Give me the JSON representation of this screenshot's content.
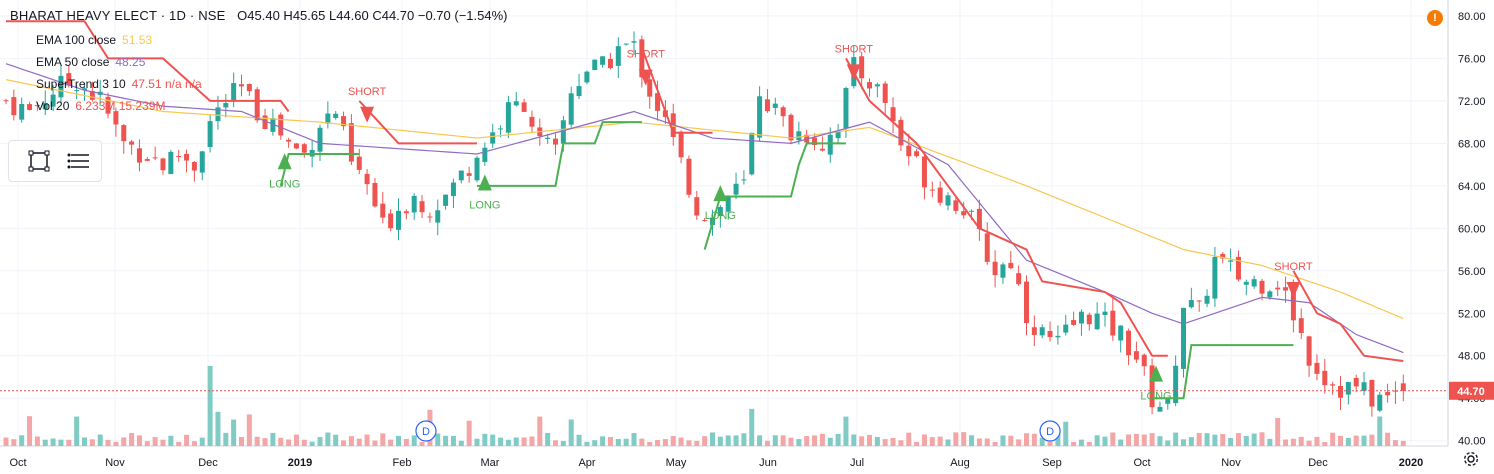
{
  "header": {
    "symbol": "BHARAT HEAVY ELECT · 1D · NSE",
    "ohlc": "O45.40 H45.65 L44.60 C44.70 −0.70 (−1.54%)",
    "indicators": [
      {
        "label": "EMA 100 close",
        "value": "51.53",
        "color": "#f9c74f"
      },
      {
        "label": "EMA 50 close",
        "value": "48.25",
        "color": "#8e6bc4"
      },
      {
        "label": "SuperTrend 3 10",
        "value": "47.51  n/a  n/a",
        "color": "#ef5350"
      },
      {
        "label": "Vol 20",
        "value": "6.233M  15.239M",
        "color": "#ef5350"
      }
    ],
    "alert_icon": "!"
  },
  "toolbox": {
    "icons": [
      "square-select-icon",
      "lines-list-icon"
    ]
  },
  "price_label": "44.70",
  "chart_data": {
    "type": "candlestick",
    "y_range": [
      39.5,
      81.5
    ],
    "y_ticks": [
      "40.00",
      "44.00",
      "48.00",
      "52.00",
      "56.00",
      "60.00",
      "64.00",
      "68.00",
      "72.00",
      "76.00",
      "80.00"
    ],
    "x_ticks": [
      "Oct",
      "Nov",
      "Dec",
      "2019",
      "Feb",
      "Mar",
      "Apr",
      "May",
      "Jun",
      "Jul",
      "Aug",
      "Sep",
      "Oct",
      "Nov",
      "Dec",
      "2020"
    ],
    "last_close": 44.7,
    "colors": {
      "up": "#26a69a",
      "down": "#ef5350",
      "ema100": "#f9c74f",
      "ema50": "#8e6bc4",
      "st_up": "#4caf50",
      "st_down": "#ef5350",
      "vol_up": "#80cbc4",
      "vol_down": "#f4a6a6"
    },
    "price_path": [
      [
        0,
        72
      ],
      [
        3,
        71
      ],
      [
        6,
        73
      ],
      [
        9,
        74
      ],
      [
        12,
        72
      ],
      [
        15,
        68
      ],
      [
        18,
        67
      ],
      [
        20,
        66
      ],
      [
        22,
        67
      ],
      [
        24,
        66
      ],
      [
        26,
        70
      ],
      [
        28,
        72
      ],
      [
        30,
        73
      ],
      [
        32,
        71
      ],
      [
        34,
        70
      ],
      [
        36,
        68
      ],
      [
        38,
        67
      ],
      [
        40,
        70
      ],
      [
        42,
        71
      ],
      [
        44,
        66
      ],
      [
        46,
        64
      ],
      [
        48,
        60
      ],
      [
        50,
        62
      ],
      [
        52,
        63
      ],
      [
        54,
        62
      ],
      [
        56,
        63
      ],
      [
        58,
        65
      ],
      [
        60,
        67
      ],
      [
        62,
        69
      ],
      [
        64,
        71
      ],
      [
        66,
        72
      ],
      [
        68,
        68
      ],
      [
        70,
        67
      ],
      [
        72,
        73
      ],
      [
        74,
        75
      ],
      [
        76,
        75
      ],
      [
        78,
        77
      ],
      [
        80,
        77
      ],
      [
        82,
        73
      ],
      [
        84,
        70
      ],
      [
        86,
        66
      ],
      [
        88,
        62
      ],
      [
        90,
        61
      ],
      [
        92,
        63
      ],
      [
        94,
        64
      ],
      [
        96,
        73
      ],
      [
        98,
        71
      ],
      [
        100,
        69
      ],
      [
        102,
        69
      ],
      [
        104,
        68
      ],
      [
        106,
        70
      ],
      [
        108,
        75
      ],
      [
        110,
        74
      ],
      [
        112,
        72
      ],
      [
        114,
        68
      ],
      [
        116,
        66
      ],
      [
        118,
        64
      ],
      [
        120,
        63
      ],
      [
        122,
        62
      ],
      [
        124,
        59
      ],
      [
        126,
        56
      ],
      [
        128,
        57
      ],
      [
        130,
        52
      ],
      [
        132,
        50
      ],
      [
        134,
        49
      ],
      [
        136,
        51
      ],
      [
        138,
        52
      ],
      [
        140,
        51
      ],
      [
        142,
        50
      ],
      [
        144,
        48
      ],
      [
        146,
        44
      ],
      [
        148,
        43
      ],
      [
        150,
        53
      ],
      [
        152,
        52
      ],
      [
        154,
        57
      ],
      [
        156,
        56
      ],
      [
        158,
        55
      ],
      [
        160,
        55
      ],
      [
        162,
        55
      ],
      [
        164,
        52
      ],
      [
        166,
        48
      ],
      [
        168,
        46
      ],
      [
        170,
        45
      ],
      [
        172,
        45
      ],
      [
        174,
        44
      ],
      [
        176,
        44
      ],
      [
        178,
        45
      ]
    ],
    "ema100": [
      [
        0,
        74
      ],
      [
        20,
        71
      ],
      [
        40,
        70
      ],
      [
        60,
        68.5
      ],
      [
        80,
        70
      ],
      [
        100,
        68.5
      ],
      [
        110,
        69.5
      ],
      [
        130,
        64
      ],
      [
        150,
        58
      ],
      [
        160,
        56.5
      ],
      [
        170,
        54
      ],
      [
        178,
        51.5
      ]
    ],
    "ema50": [
      [
        0,
        75.5
      ],
      [
        10,
        73
      ],
      [
        20,
        71.5
      ],
      [
        30,
        71
      ],
      [
        40,
        68
      ],
      [
        50,
        67.5
      ],
      [
        60,
        67
      ],
      [
        70,
        69
      ],
      [
        80,
        71
      ],
      [
        90,
        68.5
      ],
      [
        100,
        68
      ],
      [
        110,
        70
      ],
      [
        120,
        66
      ],
      [
        130,
        57
      ],
      [
        140,
        54
      ],
      [
        146,
        52
      ],
      [
        150,
        51
      ],
      [
        160,
        53.5
      ],
      [
        166,
        53
      ],
      [
        172,
        50
      ],
      [
        178,
        48.3
      ]
    ],
    "supertrend": [
      {
        "trend": "down",
        "points": [
          [
            0,
            79.5
          ],
          [
            10,
            79.5
          ],
          [
            13,
            76
          ],
          [
            20,
            76
          ],
          [
            26,
            72
          ],
          [
            35,
            72
          ],
          [
            36,
            71
          ]
        ]
      },
      {
        "trend": "up",
        "points": [
          [
            35,
            64
          ],
          [
            36,
            67
          ],
          [
            45,
            67
          ]
        ]
      },
      {
        "trend": "down",
        "points": [
          [
            45,
            72
          ],
          [
            50,
            68
          ],
          [
            60,
            68
          ]
        ]
      },
      {
        "trend": "up",
        "points": [
          [
            60,
            64
          ],
          [
            61,
            64
          ],
          [
            70,
            64
          ],
          [
            71,
            68
          ],
          [
            75,
            68
          ],
          [
            76,
            70
          ],
          [
            81,
            70
          ]
        ]
      },
      {
        "trend": "down",
        "points": [
          [
            81,
            77
          ],
          [
            85,
            69
          ],
          [
            90,
            69
          ]
        ]
      },
      {
        "trend": "up",
        "points": [
          [
            89,
            58
          ],
          [
            91,
            63
          ],
          [
            100,
            63
          ],
          [
            101,
            66
          ],
          [
            102,
            68
          ],
          [
            107,
            68
          ]
        ]
      },
      {
        "trend": "down",
        "points": [
          [
            107,
            76
          ],
          [
            110,
            72
          ],
          [
            116,
            68
          ],
          [
            120,
            64
          ],
          [
            124,
            60
          ],
          [
            130,
            58
          ],
          [
            132,
            55
          ],
          [
            140,
            54
          ],
          [
            142,
            53
          ],
          [
            146,
            48
          ],
          [
            148,
            48
          ]
        ]
      },
      {
        "trend": "up",
        "points": [
          [
            146,
            44
          ],
          [
            148,
            44
          ],
          [
            150,
            44
          ],
          [
            151,
            49
          ],
          [
            160,
            49
          ],
          [
            162,
            49
          ],
          [
            164,
            49
          ]
        ]
      },
      {
        "trend": "down",
        "points": [
          [
            164,
            56
          ],
          [
            167,
            52
          ],
          [
            170,
            51
          ],
          [
            173,
            48
          ],
          [
            178,
            47.5
          ]
        ]
      }
    ],
    "signals": [
      {
        "type": "LONG",
        "x": 35.5,
        "y": 66.5
      },
      {
        "type": "SHORT",
        "x": 46,
        "y": 70.5
      },
      {
        "type": "LONG",
        "x": 61,
        "y": 64.5
      },
      {
        "type": "SHORT",
        "x": 81.5,
        "y": 74
      },
      {
        "type": "LONG",
        "x": 91,
        "y": 63.5
      },
      {
        "type": "SHORT",
        "x": 108,
        "y": 74.5
      },
      {
        "type": "LONG",
        "x": 146.5,
        "y": 46.5
      },
      {
        "type": "SHORT",
        "x": 164,
        "y": 54
      }
    ],
    "dividend_markers": [
      {
        "label": "D",
        "x": 53.5
      },
      {
        "label": "D",
        "x": 133
      }
    ]
  }
}
